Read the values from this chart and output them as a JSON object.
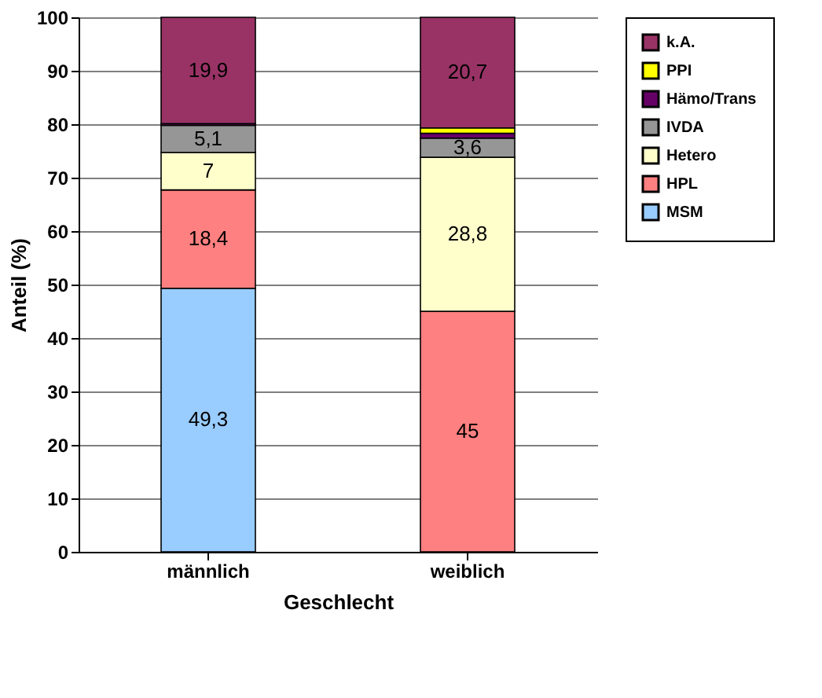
{
  "chart_data": {
    "type": "bar",
    "stacked": true,
    "categories": [
      "männlich",
      "weiblich"
    ],
    "xlabel": "Geschlecht",
    "ylabel": "Anteil (%)",
    "ylim": [
      0,
      100
    ],
    "yticks": [
      0,
      10,
      20,
      30,
      40,
      50,
      60,
      70,
      80,
      90,
      100
    ],
    "grid": "y",
    "legend": "right",
    "series": [
      {
        "name": "MSM",
        "color": "#99ccff",
        "values": [
          49.3,
          0
        ],
        "value_labels": [
          "49,3",
          null
        ]
      },
      {
        "name": "HPL",
        "color": "#ff8080",
        "values": [
          18.4,
          45
        ],
        "value_labels": [
          "18,4",
          "45"
        ]
      },
      {
        "name": "Hetero",
        "color": "#ffffcc",
        "values": [
          7,
          28.8
        ],
        "value_labels": [
          "7",
          "28,8"
        ]
      },
      {
        "name": "IVDA",
        "color": "#969696",
        "values": [
          5.1,
          3.6
        ],
        "value_labels": [
          "5,1",
          "3,6"
        ]
      },
      {
        "name": "Hämo/Trans",
        "color": "#660066",
        "values": [
          0.3,
          0.9
        ],
        "value_labels": [
          null,
          null
        ]
      },
      {
        "name": "PPI",
        "color": "#ffff00",
        "values": [
          0,
          1
        ],
        "value_labels": [
          null,
          null
        ]
      },
      {
        "name": "k.A.",
        "color": "#993366",
        "values": [
          19.9,
          20.7
        ],
        "value_labels": [
          "19,9",
          "20,7"
        ]
      }
    ]
  }
}
